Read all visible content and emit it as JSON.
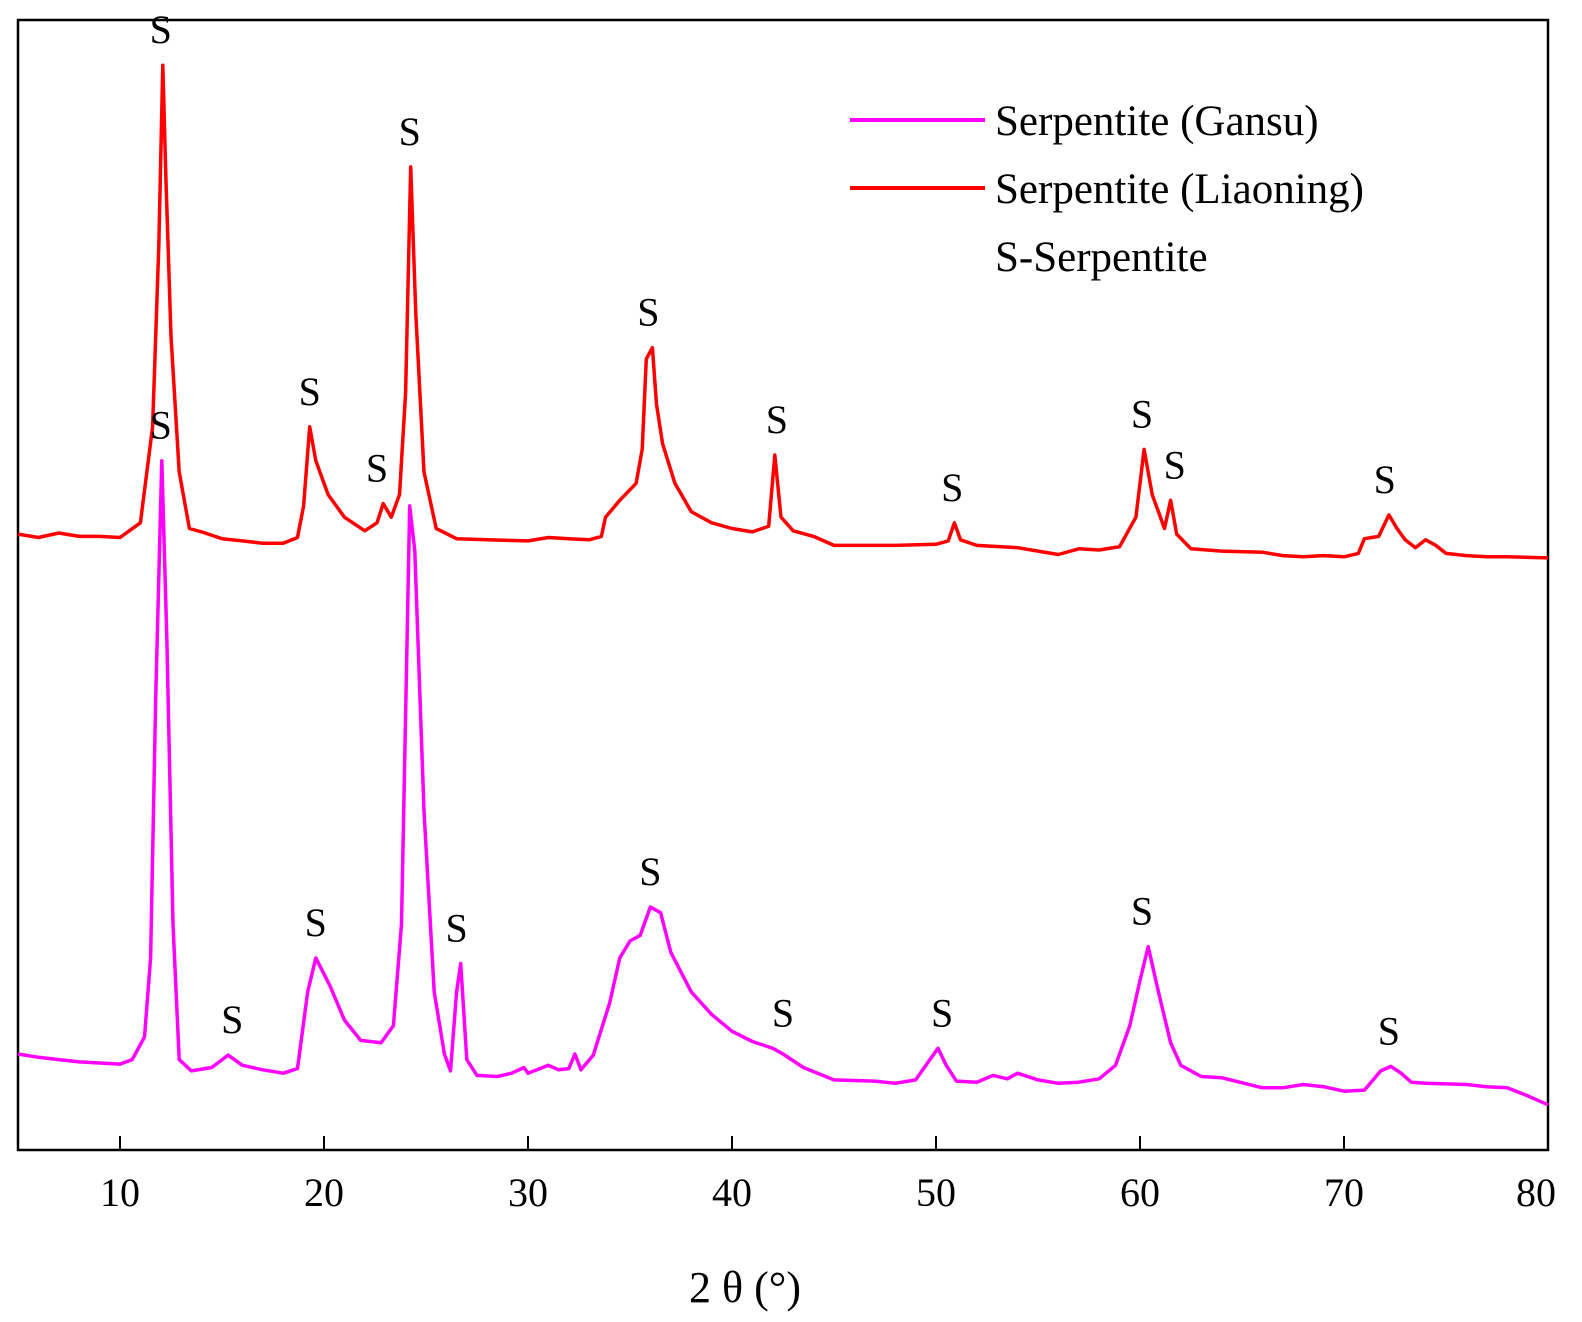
{
  "chart_data": {
    "type": "line",
    "title": "",
    "xlabel": "2 θ (°)",
    "ylabel": "",
    "xlim": [
      5,
      80
    ],
    "ylim": [
      0,
      100
    ],
    "xticks": [
      10,
      20,
      30,
      40,
      50,
      60,
      70,
      80
    ],
    "y_ticks_shown": false,
    "legend": {
      "position": "top-right",
      "entries": [
        {
          "name": "Serpentite (Gansu)",
          "color": "#ff00ff"
        },
        {
          "name": "Serpentite (Liaoning)",
          "color": "#ff0000"
        }
      ],
      "note": "S-Serpentite"
    },
    "series": [
      {
        "name": "Serpentite (Liaoning)",
        "color": "#ff0000",
        "points": [
          [
            5,
            54.5
          ],
          [
            6,
            54.2
          ],
          [
            7,
            54.6
          ],
          [
            8,
            54.3
          ],
          [
            9,
            54.3
          ],
          [
            10,
            54.2
          ],
          [
            11,
            55.5
          ],
          [
            11.6,
            64
          ],
          [
            11.9,
            80
          ],
          [
            12.1,
            96
          ],
          [
            12.25,
            86
          ],
          [
            12.5,
            72
          ],
          [
            12.9,
            60
          ],
          [
            13.4,
            55
          ],
          [
            14,
            54.7
          ],
          [
            15,
            54.1
          ],
          [
            16,
            53.9
          ],
          [
            17,
            53.7
          ],
          [
            18,
            53.7
          ],
          [
            18.7,
            54.2
          ],
          [
            19,
            57
          ],
          [
            19.3,
            64
          ],
          [
            19.6,
            61
          ],
          [
            20.2,
            58
          ],
          [
            21,
            56
          ],
          [
            22,
            54.8
          ],
          [
            22.6,
            55.5
          ],
          [
            22.9,
            57.2
          ],
          [
            23.3,
            56
          ],
          [
            23.7,
            58
          ],
          [
            24,
            67
          ],
          [
            24.25,
            87
          ],
          [
            24.5,
            74
          ],
          [
            24.9,
            60
          ],
          [
            25.5,
            55
          ],
          [
            26.5,
            54.1
          ],
          [
            28,
            54
          ],
          [
            30,
            53.9
          ],
          [
            31,
            54.2
          ],
          [
            32,
            54.1
          ],
          [
            33,
            54
          ],
          [
            33.6,
            54.3
          ],
          [
            33.8,
            56
          ],
          [
            34.5,
            57.5
          ],
          [
            35.3,
            59
          ],
          [
            35.6,
            62
          ],
          [
            35.8,
            70
          ],
          [
            36.1,
            71
          ],
          [
            36.3,
            66
          ],
          [
            36.6,
            62.5
          ],
          [
            37.2,
            59
          ],
          [
            38,
            56.5
          ],
          [
            39,
            55.5
          ],
          [
            40,
            55
          ],
          [
            41,
            54.7
          ],
          [
            41.8,
            55.2
          ],
          [
            42.1,
            61.5
          ],
          [
            42.4,
            56
          ],
          [
            43,
            54.8
          ],
          [
            44,
            54.3
          ],
          [
            45,
            53.5
          ],
          [
            46,
            53.5
          ],
          [
            48,
            53.5
          ],
          [
            50,
            53.6
          ],
          [
            50.6,
            53.9
          ],
          [
            50.9,
            55.5
          ],
          [
            51.2,
            54
          ],
          [
            52,
            53.5
          ],
          [
            54,
            53.3
          ],
          [
            55,
            53
          ],
          [
            56,
            52.7
          ],
          [
            57,
            53.2
          ],
          [
            58,
            53.1
          ],
          [
            59,
            53.4
          ],
          [
            59.8,
            56
          ],
          [
            60.2,
            62
          ],
          [
            60.6,
            58
          ],
          [
            61.2,
            55
          ],
          [
            61.5,
            57.5
          ],
          [
            61.8,
            54.5
          ],
          [
            62.5,
            53.2
          ],
          [
            64,
            53
          ],
          [
            66,
            52.9
          ],
          [
            67,
            52.6
          ],
          [
            68,
            52.5
          ],
          [
            69,
            52.6
          ],
          [
            70,
            52.5
          ],
          [
            70.7,
            52.8
          ],
          [
            71,
            54.1
          ],
          [
            71.7,
            54.3
          ],
          [
            72.2,
            56.2
          ],
          [
            72.6,
            55
          ],
          [
            73,
            54
          ],
          [
            73.5,
            53.3
          ],
          [
            74,
            54
          ],
          [
            74.5,
            53.5
          ],
          [
            75,
            52.8
          ],
          [
            76,
            52.6
          ],
          [
            77,
            52.5
          ],
          [
            78,
            52.5
          ],
          [
            80,
            52.4
          ]
        ]
      },
      {
        "name": "Serpentite (Gansu)",
        "color": "#ff00ff",
        "points": [
          [
            5,
            8.5
          ],
          [
            6,
            8.2
          ],
          [
            7,
            8
          ],
          [
            8,
            7.8
          ],
          [
            9,
            7.7
          ],
          [
            10,
            7.6
          ],
          [
            10.6,
            8
          ],
          [
            11.2,
            10
          ],
          [
            11.5,
            17
          ],
          [
            11.75,
            40
          ],
          [
            12.05,
            61
          ],
          [
            12.3,
            45
          ],
          [
            12.6,
            20
          ],
          [
            12.9,
            8
          ],
          [
            13.5,
            7
          ],
          [
            14.5,
            7.3
          ],
          [
            15.3,
            8.4
          ],
          [
            16,
            7.5
          ],
          [
            17,
            7.1
          ],
          [
            18,
            6.8
          ],
          [
            18.7,
            7.2
          ],
          [
            19.2,
            14
          ],
          [
            19.6,
            17
          ],
          [
            20.3,
            14.5
          ],
          [
            21,
            11.5
          ],
          [
            21.8,
            9.7
          ],
          [
            22.8,
            9.5
          ],
          [
            23.4,
            11
          ],
          [
            23.8,
            20
          ],
          [
            24.2,
            57
          ],
          [
            24.45,
            53
          ],
          [
            24.9,
            30
          ],
          [
            25.4,
            14
          ],
          [
            25.9,
            8.5
          ],
          [
            26.2,
            7
          ],
          [
            26.5,
            14
          ],
          [
            26.7,
            16.5
          ],
          [
            27,
            8
          ],
          [
            27.5,
            6.6
          ],
          [
            28.5,
            6.5
          ],
          [
            29.2,
            6.8
          ],
          [
            29.8,
            7.3
          ],
          [
            30,
            6.8
          ],
          [
            31,
            7.5
          ],
          [
            31.5,
            7.1
          ],
          [
            32,
            7.2
          ],
          [
            32.3,
            8.5
          ],
          [
            32.6,
            7.1
          ],
          [
            33.2,
            8.4
          ],
          [
            34,
            13
          ],
          [
            34.5,
            17
          ],
          [
            35,
            18.5
          ],
          [
            35.5,
            19
          ],
          [
            36,
            21.5
          ],
          [
            36.5,
            21
          ],
          [
            37,
            17.5
          ],
          [
            38,
            14
          ],
          [
            39,
            12
          ],
          [
            40,
            10.5
          ],
          [
            41,
            9.6
          ],
          [
            42,
            9
          ],
          [
            42.5,
            8.5
          ],
          [
            43.5,
            7.3
          ],
          [
            45,
            6.2
          ],
          [
            47,
            6.1
          ],
          [
            48,
            5.9
          ],
          [
            49,
            6.2
          ],
          [
            49.7,
            8
          ],
          [
            50.1,
            9
          ],
          [
            50.5,
            7.5
          ],
          [
            51,
            6.1
          ],
          [
            52,
            6
          ],
          [
            52.8,
            6.6
          ],
          [
            53.5,
            6.3
          ],
          [
            54,
            6.8
          ],
          [
            55,
            6.2
          ],
          [
            56,
            5.9
          ],
          [
            57,
            6
          ],
          [
            58,
            6.3
          ],
          [
            58.8,
            7.5
          ],
          [
            59.5,
            11
          ],
          [
            60,
            15
          ],
          [
            60.4,
            18
          ],
          [
            60.9,
            14
          ],
          [
            61.5,
            9.5
          ],
          [
            62,
            7.5
          ],
          [
            63,
            6.5
          ],
          [
            64,
            6.4
          ],
          [
            66,
            5.5
          ],
          [
            67,
            5.5
          ],
          [
            68,
            5.8
          ],
          [
            69,
            5.6
          ],
          [
            70,
            5.2
          ],
          [
            71,
            5.3
          ],
          [
            71.8,
            7
          ],
          [
            72.3,
            7.4
          ],
          [
            72.8,
            6.8
          ],
          [
            73.3,
            6
          ],
          [
            74,
            5.9
          ],
          [
            76,
            5.8
          ],
          [
            77,
            5.6
          ],
          [
            78,
            5.5
          ],
          [
            79,
            4.8
          ],
          [
            80,
            4
          ]
        ]
      }
    ],
    "peak_labels": [
      {
        "series": "Serpentite (Liaoning)",
        "x": 12.0,
        "text": "S"
      },
      {
        "series": "Serpentite (Liaoning)",
        "x": 19.3,
        "text": "S"
      },
      {
        "series": "Serpentite (Liaoning)",
        "x": 22.6,
        "text": "S"
      },
      {
        "series": "Serpentite (Liaoning)",
        "x": 24.2,
        "text": "S"
      },
      {
        "series": "Serpentite (Liaoning)",
        "x": 35.9,
        "text": "S"
      },
      {
        "series": "Serpentite (Liaoning)",
        "x": 42.2,
        "text": "S"
      },
      {
        "series": "Serpentite (Liaoning)",
        "x": 50.8,
        "text": "S"
      },
      {
        "series": "Serpentite (Liaoning)",
        "x": 60.1,
        "text": "S"
      },
      {
        "series": "Serpentite (Liaoning)",
        "x": 61.7,
        "text": "S"
      },
      {
        "series": "Serpentite (Liaoning)",
        "x": 72.0,
        "text": "S"
      },
      {
        "series": "Serpentite (Gansu)",
        "x": 12.0,
        "text": "S"
      },
      {
        "series": "Serpentite (Gansu)",
        "x": 15.5,
        "text": "S"
      },
      {
        "series": "Serpentite (Gansu)",
        "x": 19.6,
        "text": "S"
      },
      {
        "series": "Serpentite (Gansu)",
        "x": 26.5,
        "text": "S"
      },
      {
        "series": "Serpentite (Gansu)",
        "x": 36.0,
        "text": "S"
      },
      {
        "series": "Serpentite (Gansu)",
        "x": 42.5,
        "text": "S"
      },
      {
        "series": "Serpentite (Gansu)",
        "x": 50.3,
        "text": "S"
      },
      {
        "series": "Serpentite (Gansu)",
        "x": 60.1,
        "text": "S"
      },
      {
        "series": "Serpentite (Gansu)",
        "x": 72.2,
        "text": "S"
      }
    ]
  }
}
